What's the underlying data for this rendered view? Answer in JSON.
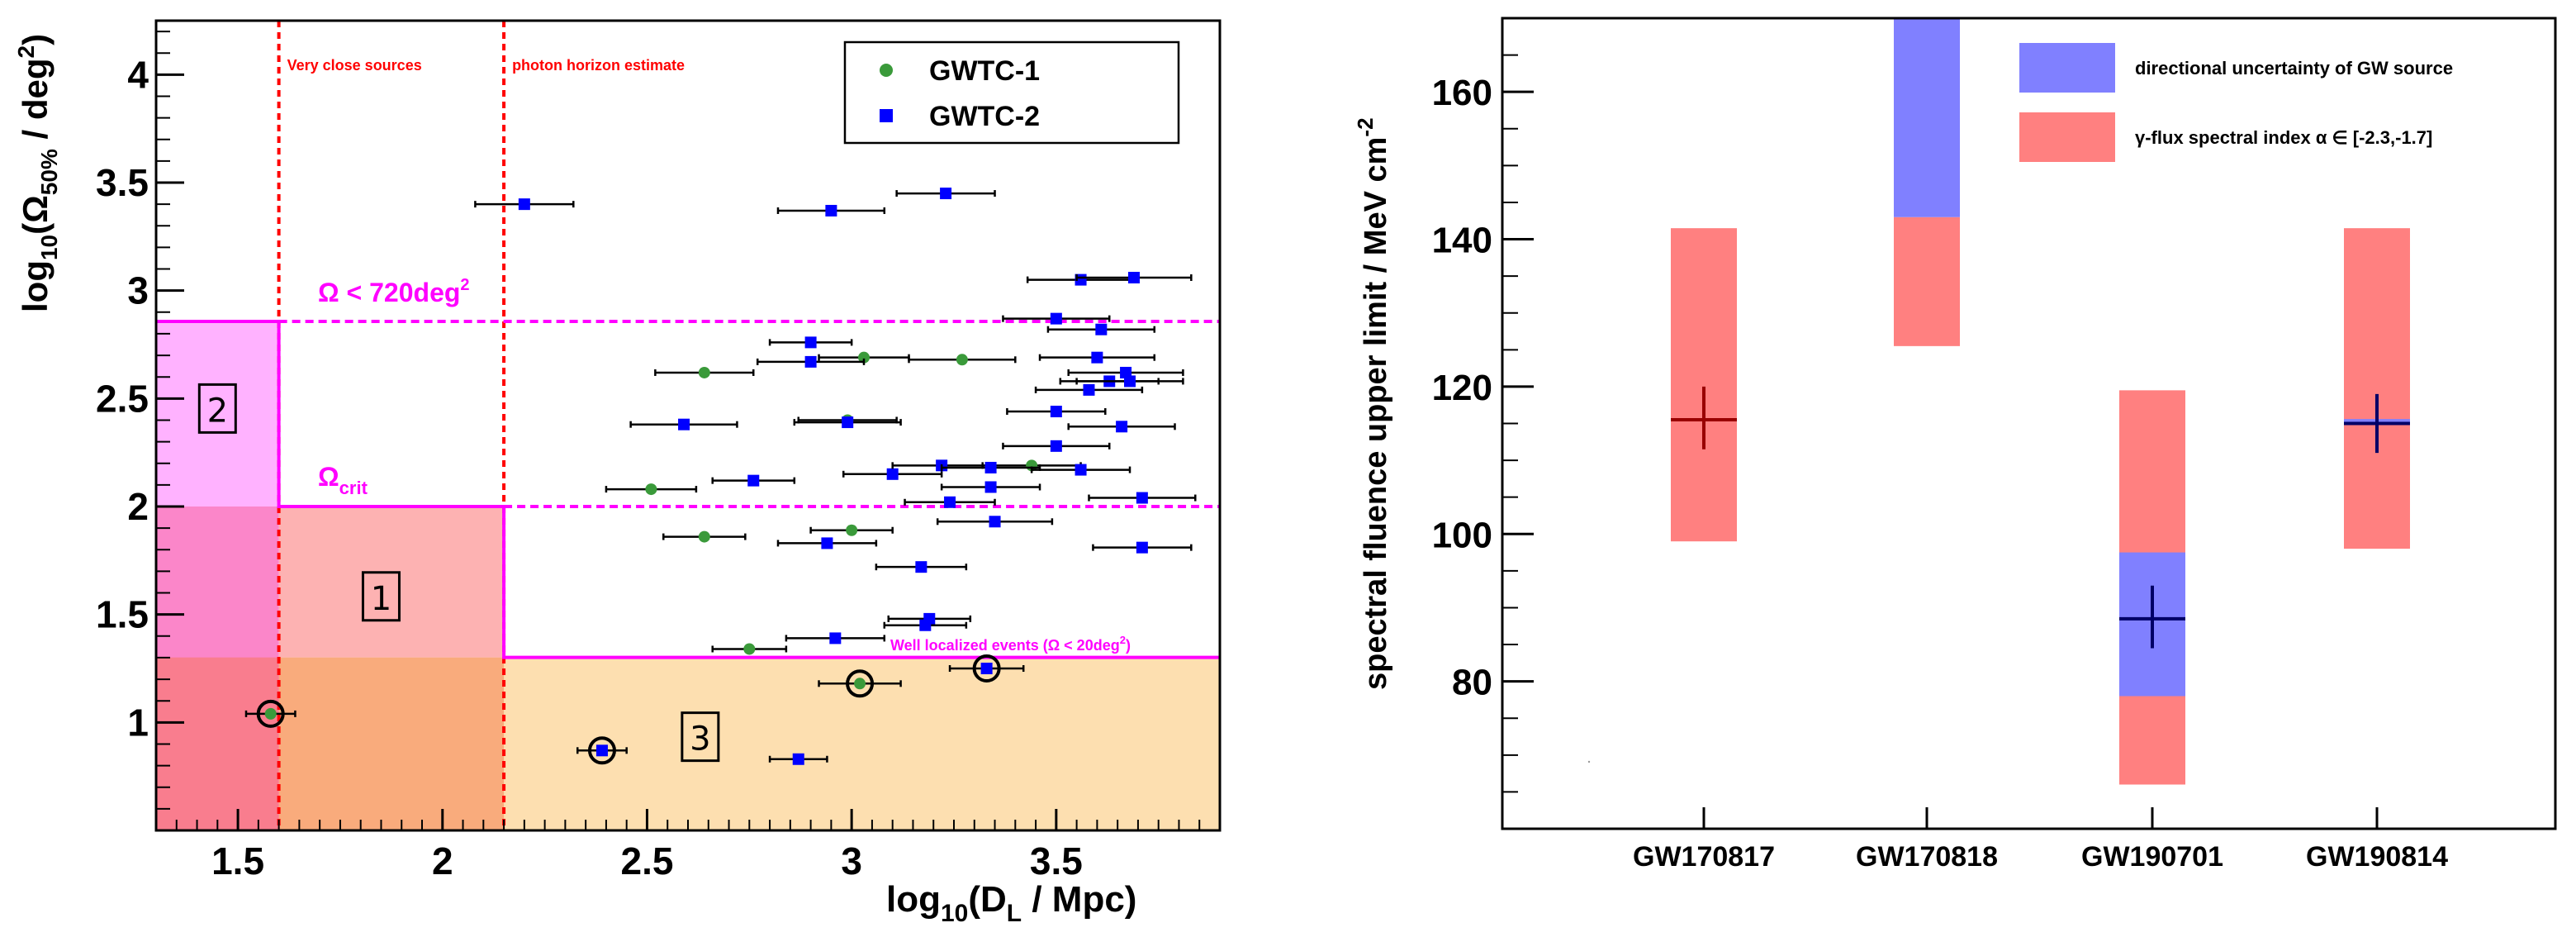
{
  "chart_data": [
    {
      "type": "scatter",
      "name": "localization-vs-distance",
      "xlabel_main": "log",
      "xlabel_sub": "10",
      "xlabel_rest": "(D",
      "xlabel_sub2": "L",
      "xlabel_end": " / Mpc)",
      "ylabel_main": "log",
      "ylabel_sub": "10",
      "ylabel_mid": "(Ω",
      "ylabel_sub2": "50%",
      "ylabel_end": " / deg",
      "ylabel_sup": "2",
      "ylabel_close": ")",
      "xlim": [
        1.3,
        3.9
      ],
      "ylim": [
        0.5,
        4.25
      ],
      "x_ticks": [
        1.5,
        2,
        2.5,
        3,
        3.5
      ],
      "x_tick_labels": [
        "1.5",
        "2",
        "2.5",
        "3",
        "3.5"
      ],
      "y_ticks": [
        1,
        1.5,
        2,
        2.5,
        3,
        3.5,
        4
      ],
      "y_tick_labels": [
        "1",
        "1.5",
        "2",
        "2.5",
        "3",
        "3.5",
        "4"
      ],
      "lines": {
        "very_close_x": 1.6,
        "photon_horizon_x": 2.15,
        "omega_720_y": 2.857,
        "omega_crit_y": 2.0,
        "well_localized_y": 1.301
      },
      "annotations": {
        "very_close": "Very close sources",
        "photon_horizon": "photon horizon estimate",
        "omega_720": "Ω < 720deg",
        "omega_720_sup": "2",
        "omega_crit": "Ω",
        "omega_crit_sub": "crit",
        "well_localized": "Well localized events (Ω < 20deg",
        "well_localized_sup": "2",
        "well_localized_close": ")"
      },
      "regions": [
        {
          "label": "1",
          "x": 1.85,
          "y": 1.58
        },
        {
          "label": "2",
          "x": 1.45,
          "y": 2.45
        },
        {
          "label": "3",
          "x": 2.63,
          "y": 0.93
        }
      ],
      "legend": [
        {
          "name": "GWTC-1",
          "marker": "circle",
          "color": "#3a9a3a"
        },
        {
          "name": "GWTC-2",
          "marker": "square",
          "color": "#0000ff"
        }
      ],
      "series": [
        {
          "name": "GWTC-1",
          "color": "#3a9a3a",
          "points": [
            {
              "x": 1.58,
              "y": 1.04,
              "xerr": 0.06,
              "circled": true
            },
            {
              "x": 3.02,
              "y": 1.18,
              "xerr": 0.1,
              "circled": true
            },
            {
              "x": 2.51,
              "y": 2.08,
              "xerr": 0.11
            },
            {
              "x": 2.64,
              "y": 2.62,
              "xerr": 0.12
            },
            {
              "x": 2.64,
              "y": 1.86,
              "xerr": 0.1
            },
            {
              "x": 2.75,
              "y": 1.34,
              "xerr": 0.09
            },
            {
              "x": 2.99,
              "y": 2.4,
              "xerr": 0.12
            },
            {
              "x": 3.0,
              "y": 1.89,
              "xerr": 0.1
            },
            {
              "x": 3.03,
              "y": 2.69,
              "xerr": 0.11
            },
            {
              "x": 3.27,
              "y": 2.68,
              "xerr": 0.13
            },
            {
              "x": 3.44,
              "y": 2.19,
              "xerr": 0.12
            }
          ]
        },
        {
          "name": "GWTC-2",
          "color": "#0000ff",
          "points": [
            {
              "x": 2.39,
              "y": 0.87,
              "xerr": 0.06,
              "circled": true
            },
            {
              "x": 3.33,
              "y": 1.25,
              "xerr": 0.09,
              "circled": true
            },
            {
              "x": 2.87,
              "y": 0.83,
              "xerr": 0.07
            },
            {
              "x": 2.96,
              "y": 1.39,
              "xerr": 0.12
            },
            {
              "x": 3.19,
              "y": 1.48,
              "xerr": 0.1
            },
            {
              "x": 3.18,
              "y": 1.45,
              "xerr": 0.1
            },
            {
              "x": 3.17,
              "y": 1.72,
              "xerr": 0.11
            },
            {
              "x": 2.94,
              "y": 1.83,
              "xerr": 0.12
            },
            {
              "x": 3.35,
              "y": 1.93,
              "xerr": 0.14
            },
            {
              "x": 3.71,
              "y": 1.81,
              "xerr": 0.12
            },
            {
              "x": 3.24,
              "y": 2.02,
              "xerr": 0.11
            },
            {
              "x": 3.34,
              "y": 2.09,
              "xerr": 0.12
            },
            {
              "x": 3.71,
              "y": 2.04,
              "xerr": 0.13
            },
            {
              "x": 2.76,
              "y": 2.12,
              "xerr": 0.1
            },
            {
              "x": 3.1,
              "y": 2.15,
              "xerr": 0.12
            },
            {
              "x": 3.22,
              "y": 2.19,
              "xerr": 0.12
            },
            {
              "x": 3.34,
              "y": 2.18,
              "xerr": 0.12
            },
            {
              "x": 3.56,
              "y": 2.17,
              "xerr": 0.12
            },
            {
              "x": 3.5,
              "y": 2.28,
              "xerr": 0.13
            },
            {
              "x": 3.66,
              "y": 2.37,
              "xerr": 0.13
            },
            {
              "x": 2.59,
              "y": 2.38,
              "xerr": 0.13
            },
            {
              "x": 2.99,
              "y": 2.39,
              "xerr": 0.13
            },
            {
              "x": 3.5,
              "y": 2.44,
              "xerr": 0.12
            },
            {
              "x": 3.58,
              "y": 2.54,
              "xerr": 0.13
            },
            {
              "x": 3.63,
              "y": 2.58,
              "xerr": 0.12
            },
            {
              "x": 3.68,
              "y": 2.58,
              "xerr": 0.13
            },
            {
              "x": 3.67,
              "y": 2.62,
              "xerr": 0.14
            },
            {
              "x": 2.9,
              "y": 2.67,
              "xerr": 0.13
            },
            {
              "x": 3.6,
              "y": 2.69,
              "xerr": 0.14
            },
            {
              "x": 2.9,
              "y": 2.76,
              "xerr": 0.1
            },
            {
              "x": 3.61,
              "y": 2.82,
              "xerr": 0.13
            },
            {
              "x": 3.5,
              "y": 2.87,
              "xerr": 0.13
            },
            {
              "x": 3.56,
              "y": 3.05,
              "xerr": 0.13
            },
            {
              "x": 3.69,
              "y": 3.06,
              "xerr": 0.14
            },
            {
              "x": 2.2,
              "y": 3.4,
              "xerr": 0.12
            },
            {
              "x": 2.95,
              "y": 3.37,
              "xerr": 0.13
            },
            {
              "x": 3.23,
              "y": 3.45,
              "xerr": 0.12
            }
          ]
        }
      ]
    },
    {
      "type": "bar",
      "name": "fluence-upper-limits",
      "ylabel": "spectral fluence upper limit / MeV cm",
      "ylabel_sup": "-2",
      "ylim": [
        60,
        170
      ],
      "y_ticks": [
        80,
        100,
        120,
        140,
        160
      ],
      "y_tick_labels": [
        "80",
        "100",
        "120",
        "140",
        "160"
      ],
      "categories": [
        "GW170817",
        "GW170818",
        "GW190701",
        "GW190814"
      ],
      "legend": [
        {
          "name": "directional uncertainty of GW source",
          "color": "#8080ff"
        },
        {
          "name": "γ-flux spectral index α ∈ [-2.3,-1.7]",
          "color": "#ff8080"
        }
      ],
      "events": [
        {
          "name": "GW170817",
          "red_range": [
            99,
            141.5
          ],
          "blue_range": null,
          "central": 115.5,
          "central_err": [
            111.5,
            120
          ],
          "cross_color": "#990000"
        },
        {
          "name": "GW170818",
          "red_range": [
            125.5,
            143
          ],
          "blue_range": [
            143,
            170
          ],
          "central": null,
          "central_err": null,
          "cross_color": null
        },
        {
          "name": "GW190701",
          "red_range": [
            66,
            119.5
          ],
          "blue_range": [
            78,
            97.5
          ],
          "central": 88.5,
          "central_err": [
            84.5,
            93
          ],
          "cross_color": "#000066"
        },
        {
          "name": "GW190814",
          "red_range": [
            98,
            141.5
          ],
          "blue_range": [
            115,
            115.6
          ],
          "central": 115,
          "central_err": [
            111,
            119
          ],
          "cross_color": "#000066"
        }
      ]
    }
  ]
}
